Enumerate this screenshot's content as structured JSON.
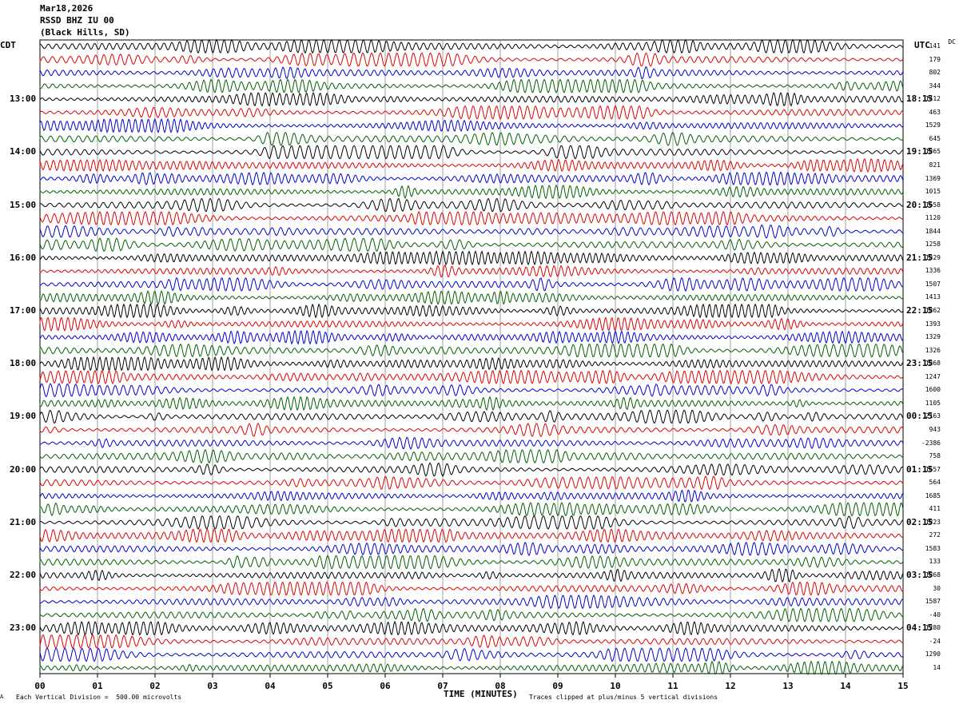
{
  "header": {
    "date": "Mar18,2026",
    "station": "RSSD BHZ IU 00",
    "location": "(Black Hills, SD)"
  },
  "left_label": "CDT",
  "right_label": "UTC",
  "dc_label": "DC",
  "footer": {
    "scale_note": "Each Vertical Division =  500.00 microvolts",
    "clip_note": "Traces clipped at plus/minus 5 vertical divisions",
    "corner_mark": "A"
  },
  "colors": {
    "trace_cycle": [
      "#000000",
      "#e00000",
      "#0000d0",
      "#006000"
    ],
    "grid": "#888888"
  },
  "chart_data": {
    "type": "seismogram",
    "xlabel": "TIME (MINUTES)",
    "x_ticks": [
      "00",
      "01",
      "02",
      "03",
      "04",
      "05",
      "06",
      "07",
      "08",
      "09",
      "10",
      "11",
      "12",
      "13",
      "14",
      "15"
    ],
    "xlim": [
      0,
      15
    ],
    "trace_count": 48,
    "left_hour_labels": [
      "13:00",
      "14:00",
      "15:00",
      "16:00",
      "17:00",
      "18:00",
      "19:00",
      "20:00",
      "21:00",
      "22:00",
      "23:00"
    ],
    "right_hour_labels": [
      "18:15",
      "19:15",
      "20:15",
      "21:15",
      "22:15",
      "23:15",
      "00:15",
      "01:15",
      "02:15",
      "03:15",
      "04:15"
    ],
    "dc_offsets": [
      "141",
      "179",
      "802",
      "344",
      "1412",
      "463",
      "1529",
      "645",
      "1865",
      "821",
      "1369",
      "1015",
      "1658",
      "1120",
      "1844",
      "1258",
      "1829",
      "1336",
      "1507",
      "1413",
      "1862",
      "1393",
      "1329",
      "1326",
      "1868",
      "1247",
      "1600",
      "1105",
      "2163",
      "943",
      "-2386",
      "758",
      "1657",
      "564",
      "1685",
      "411",
      "1823",
      "272",
      "1583",
      "133",
      "1868",
      "30",
      "1587",
      "-40",
      "1280",
      "-24",
      "1290",
      "14"
    ]
  }
}
